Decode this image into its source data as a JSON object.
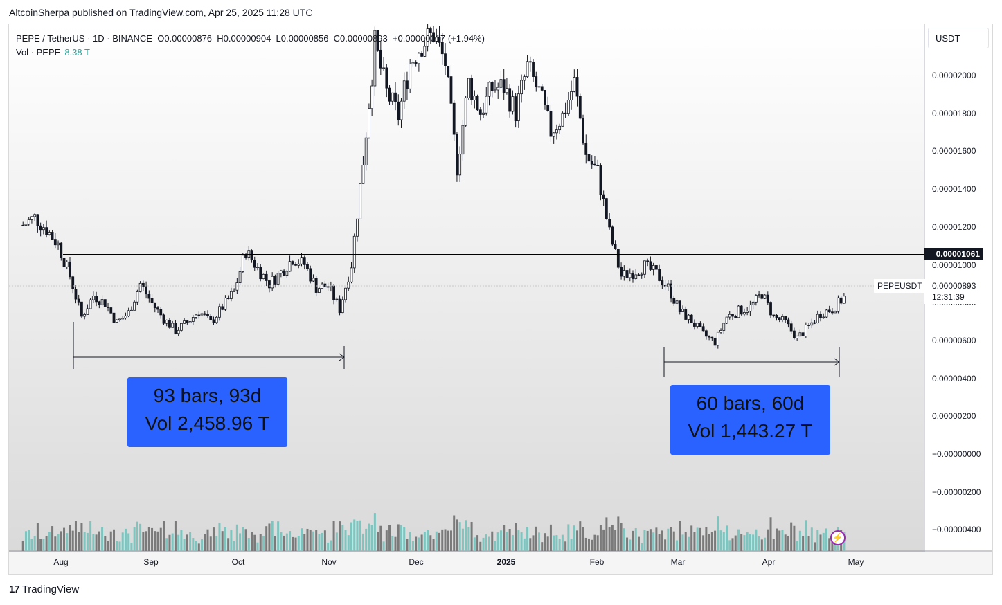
{
  "publisher": "AltcoinSherpa published on TradingView.com, Apr 25, 2025 11:28 UTC",
  "legend": {
    "line1": "PEPE / TetherUS · 1D · BINANCE  O0.00000876  H0.00000904  L0.00000856  C0.00000893  +0.00000017 (+1.94%)",
    "vol_label": "Vol · PEPE",
    "vol_value": "8.38 T"
  },
  "currency": "USDT",
  "y_ticks": [
    "0.00002000",
    "0.00001800",
    "0.00001600",
    "0.00001400",
    "0.00001200",
    "0.00001000",
    "0.00000800",
    "0.00000600",
    "0.00000400",
    "0.00000200",
    "−0.00000000",
    "−0.00000200",
    "−0.00000400"
  ],
  "x_ticks": [
    {
      "label": "Aug",
      "bold": false
    },
    {
      "label": "Sep",
      "bold": false
    },
    {
      "label": "Oct",
      "bold": false
    },
    {
      "label": "Nov",
      "bold": false
    },
    {
      "label": "Dec",
      "bold": false
    },
    {
      "label": "2025",
      "bold": true
    },
    {
      "label": "Feb",
      "bold": false
    },
    {
      "label": "Mar",
      "bold": false
    },
    {
      "label": "Apr",
      "bold": false
    },
    {
      "label": "May",
      "bold": false
    }
  ],
  "annotations": {
    "left_line1": "93 bars, 93d",
    "left_line2": "Vol 2,458.96 T",
    "right_line1": "60 bars, 60d",
    "right_line2": "Vol 1,443.27 T"
  },
  "horizontal_level": "0.00001061",
  "symbol": "PEPEUSDT",
  "last_price": "0.00000893",
  "countdown": "12:31:39",
  "brand": "TradingView",
  "colors": {
    "up": "#26a69a",
    "down": "#131722",
    "box": "#2962ff",
    "vol_up": "#7ec4bf",
    "vol_down": "#7a7a7a"
  },
  "chart_data": {
    "type": "line",
    "title": "PEPE / TetherUS · 1D · BINANCE",
    "x_range": [
      "2024-07-15",
      "2025-05-01"
    ],
    "ylim": [
      -4.5e-06,
      2.25e-05
    ],
    "series": [
      {
        "name": "PEPE / TetherUS",
        "x": [
          "2024-07-16",
          "2024-07-20",
          "2024-07-24",
          "2024-07-28",
          "2024-08-01",
          "2024-08-05",
          "2024-08-09",
          "2024-08-13",
          "2024-08-17",
          "2024-08-21",
          "2024-08-25",
          "2024-08-29",
          "2024-09-02",
          "2024-09-06",
          "2024-09-10",
          "2024-09-14",
          "2024-09-18",
          "2024-09-22",
          "2024-09-26",
          "2024-09-30",
          "2024-10-04",
          "2024-10-08",
          "2024-10-12",
          "2024-10-16",
          "2024-10-20",
          "2024-10-24",
          "2024-10-28",
          "2024-11-01",
          "2024-11-05",
          "2024-11-09",
          "2024-11-13",
          "2024-11-17",
          "2024-11-21",
          "2024-11-25",
          "2024-11-29",
          "2024-12-03",
          "2024-12-07",
          "2024-12-11",
          "2024-12-15",
          "2024-12-19",
          "2024-12-23",
          "2024-12-27",
          "2024-12-31",
          "2025-01-04",
          "2025-01-08",
          "2025-01-12",
          "2025-01-16",
          "2025-01-20",
          "2025-01-24",
          "2025-01-28",
          "2025-02-01",
          "2025-02-05",
          "2025-02-09",
          "2025-02-13",
          "2025-02-17",
          "2025-02-21",
          "2025-02-25",
          "2025-03-01",
          "2025-03-05",
          "2025-03-09",
          "2025-03-13",
          "2025-03-17",
          "2025-03-21",
          "2025-03-25",
          "2025-03-29",
          "2025-04-02",
          "2025-04-06",
          "2025-04-10",
          "2025-04-14",
          "2025-04-18",
          "2025-04-22",
          "2025-04-25"
        ],
        "values": [
          1.22e-05,
          1.26e-05,
          1.2e-05,
          1.12e-05,
          9.6e-06,
          7.5e-06,
          8.6e-06,
          8.2e-06,
          7.2e-06,
          7.7e-06,
          9.2e-06,
          8.2e-06,
          7.4e-06,
          6.8e-06,
          7.2e-06,
          7.8e-06,
          7.2e-06,
          8e-06,
          8.8e-06,
          1.09e-05,
          1e-05,
          9.2e-06,
          9.8e-06,
          1.05e-05,
          1.02e-05,
          9e-06,
          9.1e-06,
          7.9e-06,
          1.02e-05,
          1.55e-05,
          2.15e-05,
          1.9e-05,
          1.78e-05,
          2.05e-05,
          2.15e-05,
          2.2e-05,
          2.05e-05,
          1.52e-05,
          1.95e-05,
          1.8e-05,
          1.92e-05,
          1.93e-05,
          1.8e-05,
          2.03e-05,
          1.9e-05,
          1.7e-05,
          1.78e-05,
          1.95e-05,
          1.58e-05,
          1.49e-05,
          1.18e-05,
          9.6e-06,
          9.8e-06,
          1.01e-05,
          9.7e-06,
          9e-06,
          7.8e-06,
          7.3e-06,
          6.6e-06,
          6.2e-06,
          7.5e-06,
          7.8e-06,
          8e-06,
          8.7e-06,
          7.5e-06,
          7.2e-06,
          6.4e-06,
          7e-06,
          7.7e-06,
          7.9e-06,
          8.5e-06,
          8.9e-06
        ]
      }
    ],
    "xlabel": "",
    "ylabel": "",
    "grid": false,
    "legend": "top-left"
  }
}
